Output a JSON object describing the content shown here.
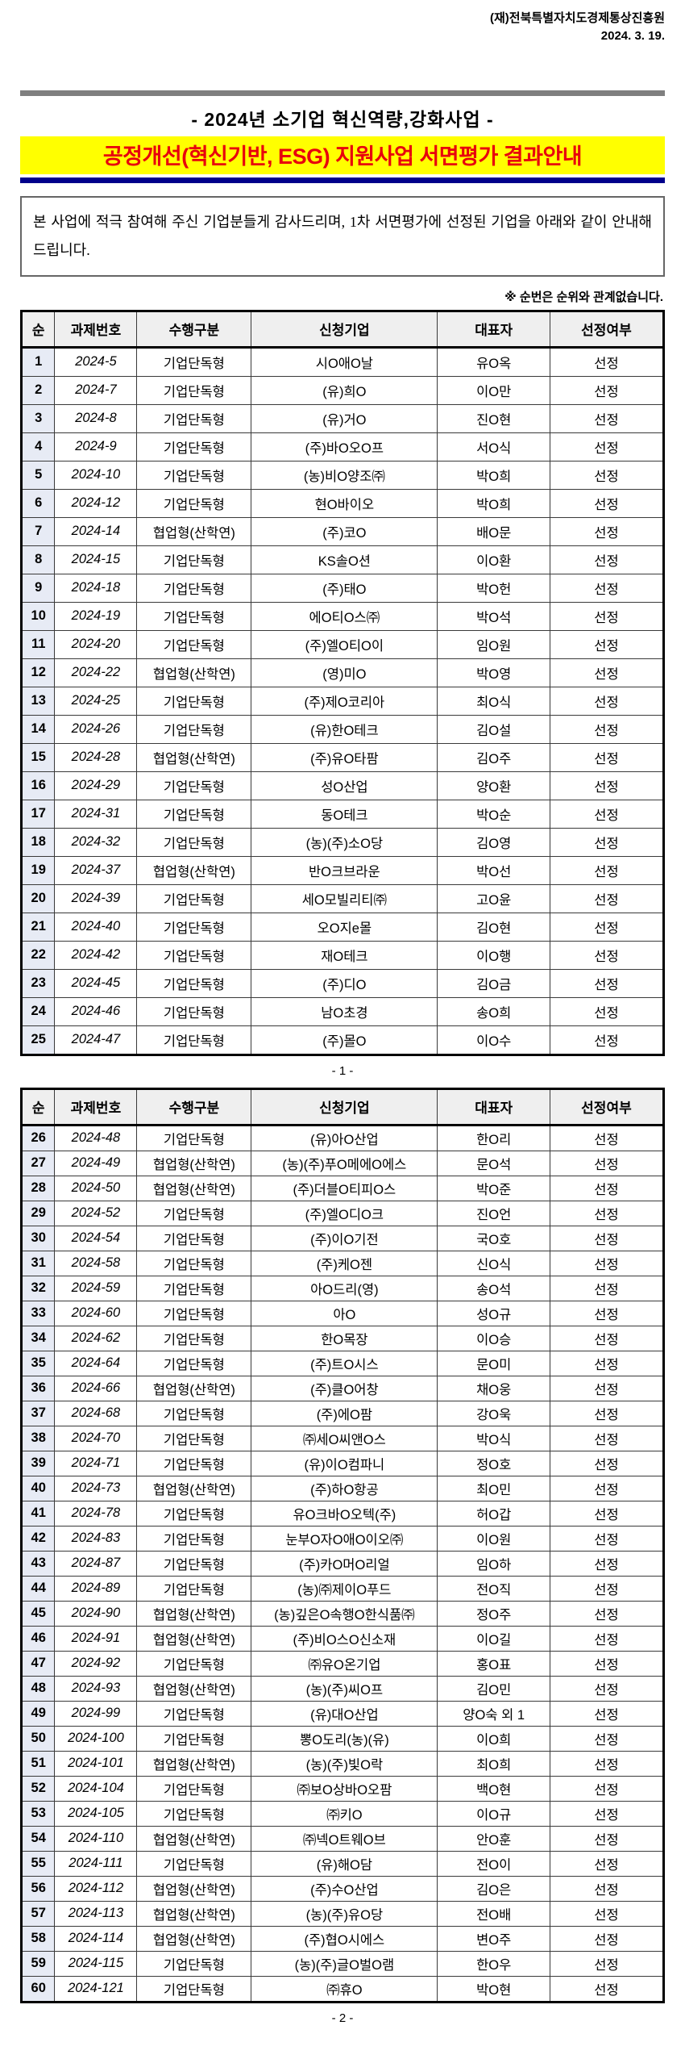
{
  "doc_header": {
    "org": "(재)전북특별자치도경제통상진흥원",
    "date": "2024.  3.  19."
  },
  "title": {
    "main": "-  2024년  소기업  혁신역량,강화사업  -",
    "highlight": "공정개선(혁신기반,  ESG)  지원사업  서면평가  결과안내"
  },
  "notice_text": "본 사업에 적극 참여해 주신 기업분들게 감사드리며, 1차 서면평가에 선정된 기업을 아래와 같이 안내해 드립니다.",
  "note_text": "※ 순번은 순위와 관계없습니다.",
  "table_columns": [
    "순",
    "과제번호",
    "수행구분",
    "신청기업",
    "대표자",
    "선정여부"
  ],
  "page1": {
    "marker": "- 1 -",
    "rows": [
      {
        "no": "1",
        "code": "2024-5",
        "type": "기업단독형",
        "company": "시O애O날",
        "ceo": "유O옥",
        "status": "선정"
      },
      {
        "no": "2",
        "code": "2024-7",
        "type": "기업단독형",
        "company": "(유)희O",
        "ceo": "이O만",
        "status": "선정"
      },
      {
        "no": "3",
        "code": "2024-8",
        "type": "기업단독형",
        "company": "(유)거O",
        "ceo": "진O현",
        "status": "선정"
      },
      {
        "no": "4",
        "code": "2024-9",
        "type": "기업단독형",
        "company": "(주)바O오O프",
        "ceo": "서O식",
        "status": "선정"
      },
      {
        "no": "5",
        "code": "2024-10",
        "type": "기업단독형",
        "company": "(농)비O양조㈜",
        "ceo": "박O희",
        "status": "선정"
      },
      {
        "no": "6",
        "code": "2024-12",
        "type": "기업단독형",
        "company": "현O바이오",
        "ceo": "박O희",
        "status": "선정"
      },
      {
        "no": "7",
        "code": "2024-14",
        "type": "협업형(산학연)",
        "company": "(주)코O",
        "ceo": "배O문",
        "status": "선정"
      },
      {
        "no": "8",
        "code": "2024-15",
        "type": "기업단독형",
        "company": "KS솔O션",
        "ceo": "이O환",
        "status": "선정"
      },
      {
        "no": "9",
        "code": "2024-18",
        "type": "기업단독형",
        "company": "(주)태O",
        "ceo": "박O헌",
        "status": "선정"
      },
      {
        "no": "10",
        "code": "2024-19",
        "type": "기업단독형",
        "company": "에O티O스㈜",
        "ceo": "박O석",
        "status": "선정"
      },
      {
        "no": "11",
        "code": "2024-20",
        "type": "기업단독형",
        "company": "(주)엘O티O이",
        "ceo": "임O원",
        "status": "선정"
      },
      {
        "no": "12",
        "code": "2024-22",
        "type": "협업형(산학연)",
        "company": "(영)미O",
        "ceo": "박O영",
        "status": "선정"
      },
      {
        "no": "13",
        "code": "2024-25",
        "type": "기업단독형",
        "company": "(주)제O코리아",
        "ceo": "최O식",
        "status": "선정"
      },
      {
        "no": "14",
        "code": "2024-26",
        "type": "기업단독형",
        "company": "(유)한O테크",
        "ceo": "김O설",
        "status": "선정"
      },
      {
        "no": "15",
        "code": "2024-28",
        "type": "협업형(산학연)",
        "company": "(주)유O타팜",
        "ceo": "김O주",
        "status": "선정"
      },
      {
        "no": "16",
        "code": "2024-29",
        "type": "기업단독형",
        "company": "성O산업",
        "ceo": "양O환",
        "status": "선정"
      },
      {
        "no": "17",
        "code": "2024-31",
        "type": "기업단독형",
        "company": "동O테크",
        "ceo": "박O순",
        "status": "선정"
      },
      {
        "no": "18",
        "code": "2024-32",
        "type": "기업단독형",
        "company": "(농)(주)소O당",
        "ceo": "김O영",
        "status": "선정"
      },
      {
        "no": "19",
        "code": "2024-37",
        "type": "협업형(산학연)",
        "company": "반O크브라운",
        "ceo": "박O선",
        "status": "선정"
      },
      {
        "no": "20",
        "code": "2024-39",
        "type": "기업단독형",
        "company": "세O모빌리티㈜",
        "ceo": "고O윤",
        "status": "선정"
      },
      {
        "no": "21",
        "code": "2024-40",
        "type": "기업단독형",
        "company": "오O지e몰",
        "ceo": "김O현",
        "status": "선정"
      },
      {
        "no": "22",
        "code": "2024-42",
        "type": "기업단독형",
        "company": "재O테크",
        "ceo": "이O행",
        "status": "선정"
      },
      {
        "no": "23",
        "code": "2024-45",
        "type": "기업단독형",
        "company": "(주)디O",
        "ceo": "김O금",
        "status": "선정"
      },
      {
        "no": "24",
        "code": "2024-46",
        "type": "기업단독형",
        "company": "남O초경",
        "ceo": "송O희",
        "status": "선정"
      },
      {
        "no": "25",
        "code": "2024-47",
        "type": "기업단독형",
        "company": "(주)몰O",
        "ceo": "이O수",
        "status": "선정"
      }
    ]
  },
  "page2": {
    "marker": "- 2 -",
    "rows": [
      {
        "no": "26",
        "code": "2024-48",
        "type": "기업단독형",
        "company": "(유)아O산업",
        "ceo": "한O리",
        "status": "선정"
      },
      {
        "no": "27",
        "code": "2024-49",
        "type": "협업형(산학연)",
        "company": "(농)(주)푸O메에O에스",
        "ceo": "문O석",
        "status": "선정"
      },
      {
        "no": "28",
        "code": "2024-50",
        "type": "협업형(산학연)",
        "company": "(주)더블O티피O스",
        "ceo": "박O준",
        "status": "선정"
      },
      {
        "no": "29",
        "code": "2024-52",
        "type": "기업단독형",
        "company": "(주)엘O디O크",
        "ceo": "진O언",
        "status": "선정"
      },
      {
        "no": "30",
        "code": "2024-54",
        "type": "기업단독형",
        "company": "(주)이O기전",
        "ceo": "국O호",
        "status": "선정"
      },
      {
        "no": "31",
        "code": "2024-58",
        "type": "기업단독형",
        "company": "(주)케O젠",
        "ceo": "신O식",
        "status": "선정"
      },
      {
        "no": "32",
        "code": "2024-59",
        "type": "기업단독형",
        "company": "아O드리(영)",
        "ceo": "송O석",
        "status": "선정"
      },
      {
        "no": "33",
        "code": "2024-60",
        "type": "기업단독형",
        "company": "아O",
        "ceo": "성O규",
        "status": "선정"
      },
      {
        "no": "34",
        "code": "2024-62",
        "type": "기업단독형",
        "company": "한O목장",
        "ceo": "이O승",
        "status": "선정"
      },
      {
        "no": "35",
        "code": "2024-64",
        "type": "기업단독형",
        "company": "(주)트O시스",
        "ceo": "문O미",
        "status": "선정"
      },
      {
        "no": "36",
        "code": "2024-66",
        "type": "협업형(산학연)",
        "company": "(주)클O어창",
        "ceo": "채O웅",
        "status": "선정"
      },
      {
        "no": "37",
        "code": "2024-68",
        "type": "기업단독형",
        "company": "(주)에O팜",
        "ceo": "강O욱",
        "status": "선정"
      },
      {
        "no": "38",
        "code": "2024-70",
        "type": "기업단독형",
        "company": "㈜세O씨앤O스",
        "ceo": "박O식",
        "status": "선정"
      },
      {
        "no": "39",
        "code": "2024-71",
        "type": "기업단독형",
        "company": "(유)이O컴파니",
        "ceo": "정O호",
        "status": "선정"
      },
      {
        "no": "40",
        "code": "2024-73",
        "type": "협업형(산학연)",
        "company": "(주)하O항공",
        "ceo": "최O민",
        "status": "선정"
      },
      {
        "no": "41",
        "code": "2024-78",
        "type": "기업단독형",
        "company": "유O크바O오텍(주)",
        "ceo": "허O갑",
        "status": "선정"
      },
      {
        "no": "42",
        "code": "2024-83",
        "type": "기업단독형",
        "company": "눈부O자O애O이오㈜",
        "ceo": "이O원",
        "status": "선정"
      },
      {
        "no": "43",
        "code": "2024-87",
        "type": "기업단독형",
        "company": "(주)카O머O리얼",
        "ceo": "임O하",
        "status": "선정"
      },
      {
        "no": "44",
        "code": "2024-89",
        "type": "기업단독형",
        "company": "(농)㈜제이O푸드",
        "ceo": "전O직",
        "status": "선정"
      },
      {
        "no": "45",
        "code": "2024-90",
        "type": "협업형(산학연)",
        "company": "(농)깊은O속행O한식품㈜",
        "ceo": "정O주",
        "status": "선정"
      },
      {
        "no": "46",
        "code": "2024-91",
        "type": "협업형(산학연)",
        "company": "(주)비O스O신소재",
        "ceo": "이O길",
        "status": "선정"
      },
      {
        "no": "47",
        "code": "2024-92",
        "type": "기업단독형",
        "company": "㈜유O온기업",
        "ceo": "홍O표",
        "status": "선정"
      },
      {
        "no": "48",
        "code": "2024-93",
        "type": "협업형(산학연)",
        "company": "(농)(주)씨O프",
        "ceo": "김O민",
        "status": "선정"
      },
      {
        "no": "49",
        "code": "2024-99",
        "type": "기업단독형",
        "company": "(유)대O산업",
        "ceo": "양O숙 외 1",
        "status": "선정"
      },
      {
        "no": "50",
        "code": "2024-100",
        "type": "기업단독형",
        "company": "뽕O도리(농)(유)",
        "ceo": "이O희",
        "status": "선정"
      },
      {
        "no": "51",
        "code": "2024-101",
        "type": "협업형(산학연)",
        "company": "(농)(주)빛O락",
        "ceo": "최O희",
        "status": "선정"
      },
      {
        "no": "52",
        "code": "2024-104",
        "type": "기업단독형",
        "company": "㈜보O상바O오팜",
        "ceo": "백O현",
        "status": "선정"
      },
      {
        "no": "53",
        "code": "2024-105",
        "type": "기업단독형",
        "company": "㈜키O",
        "ceo": "이O규",
        "status": "선정"
      },
      {
        "no": "54",
        "code": "2024-110",
        "type": "협업형(산학연)",
        "company": "㈜넥O트웨O브",
        "ceo": "안O훈",
        "status": "선정"
      },
      {
        "no": "55",
        "code": "2024-111",
        "type": "기업단독형",
        "company": "(유)해O담",
        "ceo": "전O이",
        "status": "선정"
      },
      {
        "no": "56",
        "code": "2024-112",
        "type": "협업형(산학연)",
        "company": "(주)수O산업",
        "ceo": "김O은",
        "status": "선정"
      },
      {
        "no": "57",
        "code": "2024-113",
        "type": "협업형(산학연)",
        "company": "(농)(주)유O당",
        "ceo": "전O배",
        "status": "선정"
      },
      {
        "no": "58",
        "code": "2024-114",
        "type": "협업형(산학연)",
        "company": "(주)협O시에스",
        "ceo": "변O주",
        "status": "선정"
      },
      {
        "no": "59",
        "code": "2024-115",
        "type": "기업단독형",
        "company": "(농)(주)글O벌O램",
        "ceo": "한O우",
        "status": "선정"
      },
      {
        "no": "60",
        "code": "2024-121",
        "type": "기업단독형",
        "company": "㈜휴O",
        "ceo": "박O현",
        "status": "선정"
      }
    ]
  },
  "colors": {
    "yellow": "#ffff00",
    "red": "#e8000d",
    "navy": "#00008b",
    "graybar": "#7f7f7f",
    "seqbg": "#e7ebf5",
    "headbg": "#efefef"
  }
}
